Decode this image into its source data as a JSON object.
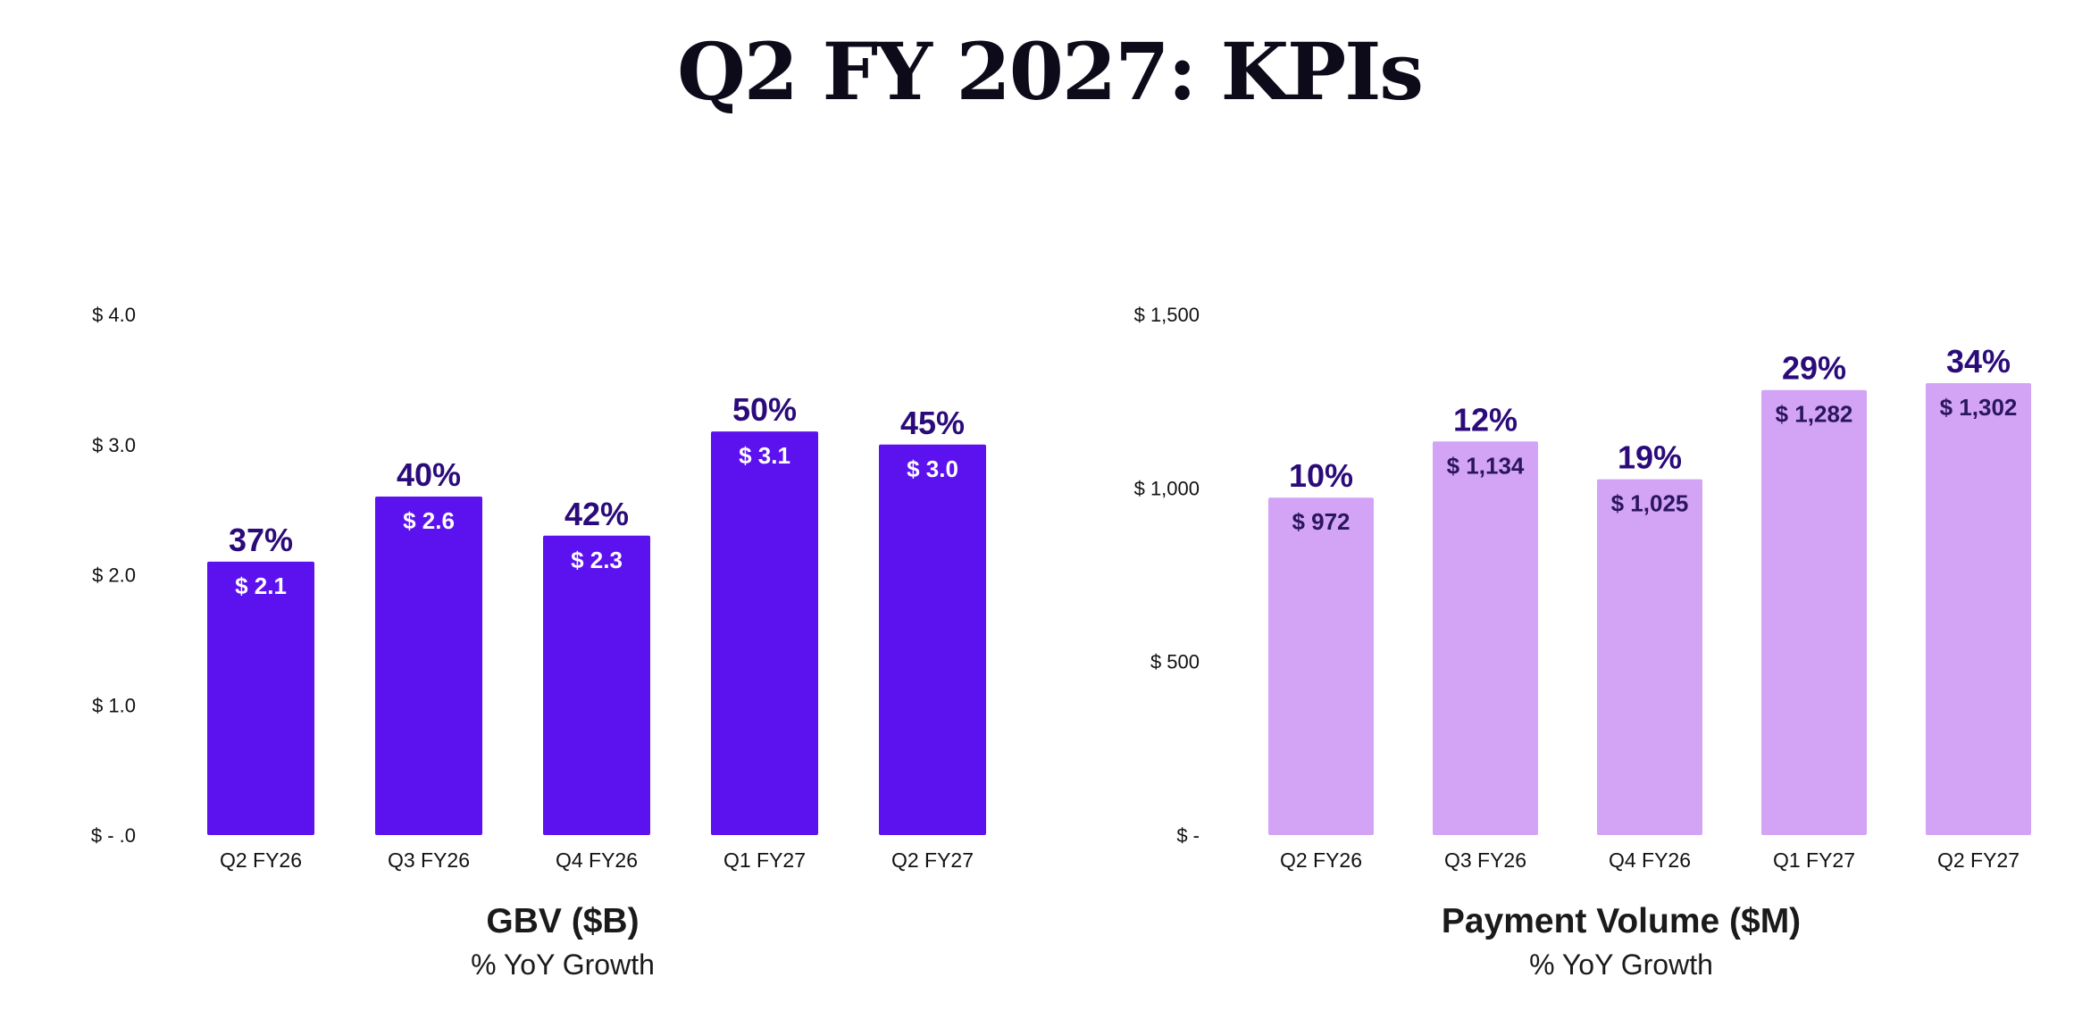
{
  "page": {
    "title": "Q2 FY 2027: KPIs"
  },
  "colors": {
    "gbv_bar": "#5c12ee",
    "pv_bar": "#d3a3f6",
    "growth_label": "#2b0b7a",
    "pv_value_label": "#2a1560",
    "gbv_value_label": "#ffffff",
    "axis_text": "#111111"
  },
  "chart_data": [
    {
      "type": "bar",
      "title": "GBV ($B)",
      "subtitle": "% YoY Growth",
      "categories": [
        "Q2 FY26",
        "Q3 FY26",
        "Q4 FY26",
        "Q1 FY27",
        "Q2 FY27"
      ],
      "values": [
        2.1,
        2.6,
        2.3,
        3.1,
        3.0
      ],
      "value_labels": [
        "$ 2.1",
        "$ 2.6",
        "$ 2.3",
        "$ 3.1",
        "$ 3.0"
      ],
      "growth_labels": [
        "37%",
        "40%",
        "42%",
        "50%",
        "45%"
      ],
      "ylim": [
        0,
        4
      ],
      "yticks": [
        0,
        1,
        2,
        3,
        4
      ],
      "ytick_labels": [
        "$ -  .0",
        "$ 1.0",
        "$ 2.0",
        "$ 3.0",
        "$ 4.0"
      ],
      "grid": false,
      "xlabel": "",
      "ylabel": ""
    },
    {
      "type": "bar",
      "title": "Payment Volume ($M)",
      "subtitle": "% YoY Growth",
      "categories": [
        "Q2 FY26",
        "Q3 FY26",
        "Q4 FY26",
        "Q1 FY27",
        "Q2 FY27"
      ],
      "values": [
        972,
        1134,
        1025,
        1282,
        1302
      ],
      "value_labels": [
        "$ 972",
        "$ 1,134",
        "$ 1,025",
        "$ 1,282",
        "$ 1,302"
      ],
      "growth_labels": [
        "10%",
        "12%",
        "19%",
        "29%",
        "34%"
      ],
      "ylim": [
        0,
        1500
      ],
      "yticks": [
        0,
        500,
        1000,
        1500
      ],
      "ytick_labels": [
        "$ -",
        "$ 500",
        "$ 1,000",
        "$ 1,500"
      ],
      "grid": false,
      "xlabel": "",
      "ylabel": ""
    }
  ]
}
